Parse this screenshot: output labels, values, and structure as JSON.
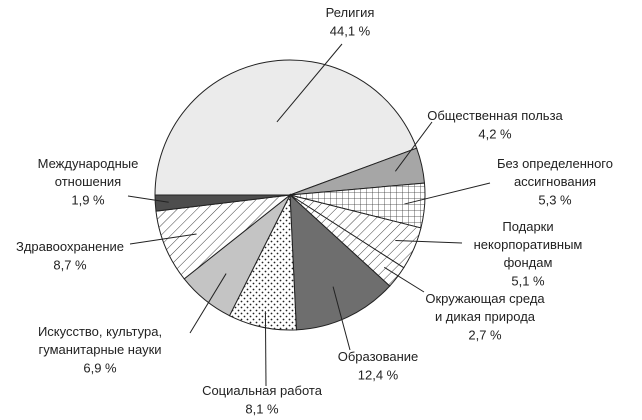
{
  "chart_data": {
    "type": "pie",
    "categories": [
      "Религия",
      "Общественная польза",
      "Без определенного\nассигнования",
      "Подарки\nнекорпоративным\nфондам",
      "Окружающая среда\nи дикая природа",
      "Образование",
      "Социальная работа",
      "Искусство, культура,\nгуманитарные науки",
      "Здравоохранение",
      "Международные\nотношения"
    ],
    "values": [
      44.1,
      4.2,
      5.3,
      5.1,
      2.7,
      12.4,
      8.1,
      6.9,
      8.7,
      1.9
    ],
    "value_labels": [
      "44,1 %",
      "4,2 %",
      "5,3 %",
      "5,1 %",
      "2,7 %",
      "12,4 %",
      "8,1 %",
      "6,9 %",
      "8,7 %",
      "1,9 %"
    ],
    "colors": [
      "#ebebeb",
      "#a6a6a6",
      "grid",
      "hatch",
      "hatch",
      "#6e6e6e",
      "dots",
      "#c4c4c4",
      "hatch",
      "#4d4d4d"
    ]
  }
}
